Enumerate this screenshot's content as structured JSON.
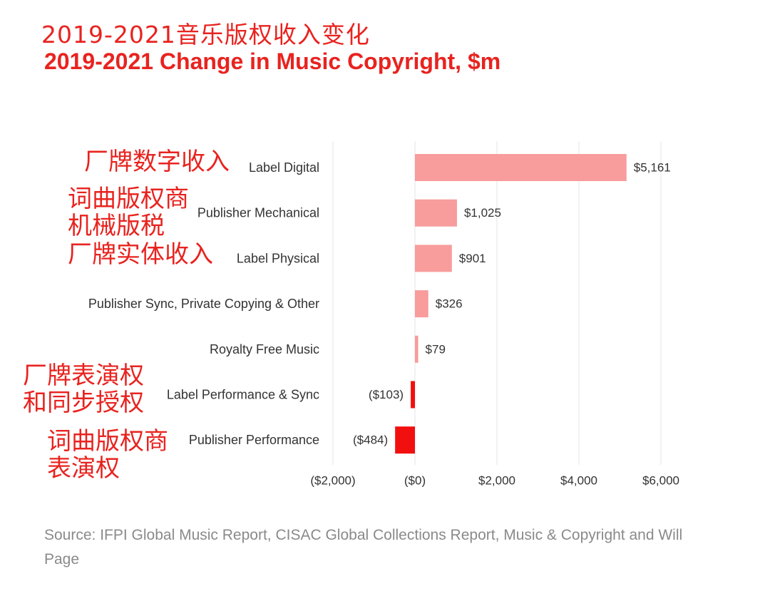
{
  "titles": {
    "cn": "2019-2021音乐版权收入变化",
    "en": "2019-2021 Change in Music Copyright, $m"
  },
  "annotations": [
    [
      "厂牌数字收入"
    ],
    [
      "词曲版权商",
      "机械版税"
    ],
    [
      "厂牌实体收入"
    ],
    [
      "厂牌表演权",
      "和同步授权"
    ],
    [
      "词曲版权商",
      "表演权"
    ]
  ],
  "source": "Source: IFPI Global Music Report, CISAC Global Collections Report, Music & Copyright and Will Page",
  "colors": {
    "positive": "#f89c9c",
    "negative": "#f20f0f",
    "title": "#e8231f",
    "grid": "#e6e6e6",
    "text": "#333333"
  },
  "chart_data": {
    "type": "bar",
    "orientation": "horizontal",
    "categories": [
      "Label Digital",
      "Publisher Mechanical",
      "Label Physical",
      "Publisher Sync, Private Copying & Other",
      "Royalty Free Music",
      "Label Performance & Sync",
      "Publisher Performance"
    ],
    "values": [
      5161,
      1025,
      901,
      326,
      79,
      -103,
      -484
    ],
    "value_labels": [
      "$5,161",
      "$1,025",
      "$901",
      "$326",
      "$79",
      "($103)",
      "($484)"
    ],
    "xlim": [
      -2000,
      6000
    ],
    "xticks": [
      -2000,
      0,
      2000,
      4000,
      6000
    ],
    "xtick_labels": [
      "($2,000)",
      "($0)",
      "$2,000",
      "$4,000",
      "$6,000"
    ],
    "grid": "vertical",
    "xlabel": "",
    "ylabel": ""
  }
}
